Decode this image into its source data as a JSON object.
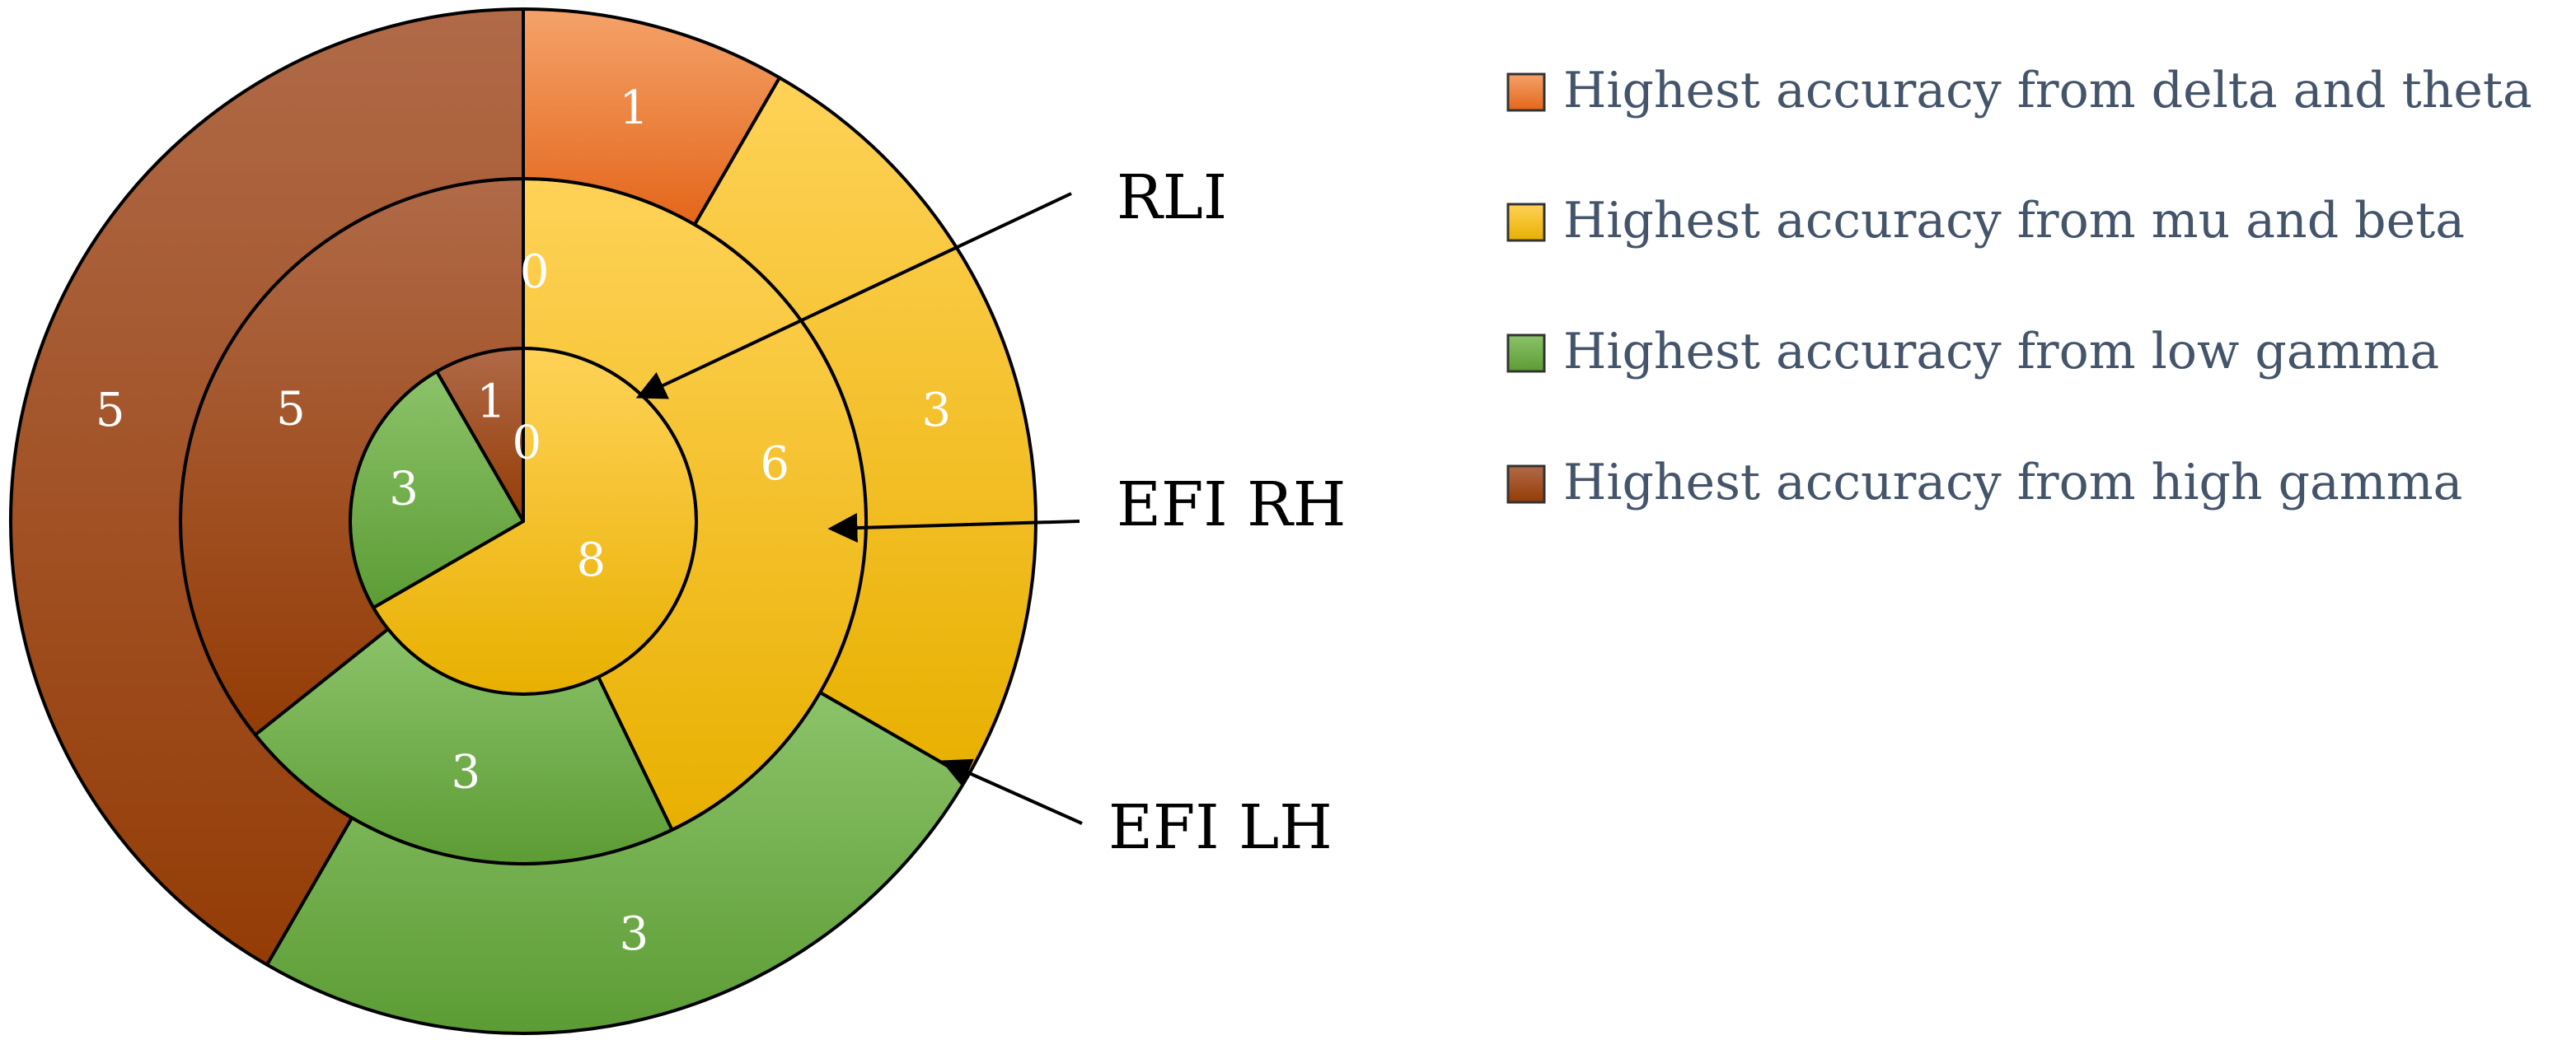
{
  "chart_data": {
    "type": "pie",
    "subtype": "multi-level doughnut",
    "title": "",
    "categories": [
      "Highest accuracy from delta and theta",
      "Highest accuracy from mu and beta",
      "Highest accuracy from low gamma",
      "Highest accuracy from high gamma"
    ],
    "colors": [
      "#ee7b30",
      "#ffc000",
      "#70ad47",
      "#a0461a"
    ],
    "series": [
      {
        "name": "RLI",
        "values": [
          0,
          8,
          3,
          1
        ],
        "labels": [
          "0",
          "8",
          "3",
          "1"
        ]
      },
      {
        "name": "EFI RH",
        "values": [
          0,
          6,
          3,
          5
        ],
        "labels": [
          "0",
          "6",
          "3",
          "5"
        ]
      },
      {
        "name": "EFI LH",
        "values": [
          1,
          3,
          3,
          5
        ],
        "labels": [
          "1",
          "3",
          "3",
          "5"
        ]
      }
    ],
    "legend": {
      "position": "right",
      "entries": [
        "Highest accuracy from delta and theta",
        "Highest accuracy from mu and beta",
        "Highest accuracy from low gamma",
        "Highest accuracy from high gamma"
      ]
    }
  }
}
